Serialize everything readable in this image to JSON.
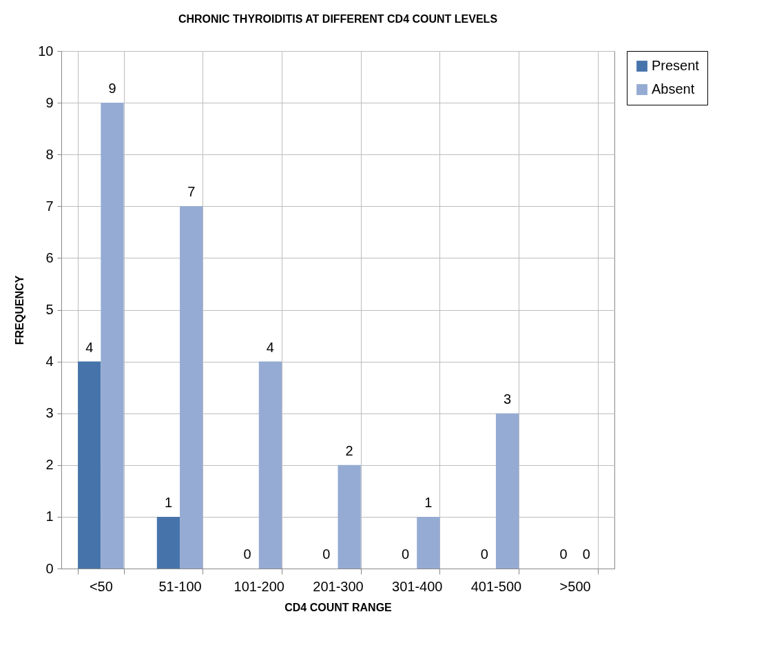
{
  "chart_data": {
    "type": "bar",
    "title": "CHRONIC THYROIDITIS AT DIFFERENT CD4 COUNT LEVELS",
    "xlabel": "CD4 COUNT RANGE",
    "ylabel": "FREQUENCY",
    "categories": [
      "<50",
      "51-100",
      "101-200",
      "201-300",
      "301-400",
      "401-500",
      ">500"
    ],
    "series": [
      {
        "name": "Present",
        "color": "#4674aa",
        "values": [
          4,
          1,
          0,
          0,
          0,
          0,
          0
        ]
      },
      {
        "name": "Absent",
        "color": "#95abd3",
        "values": [
          9,
          7,
          4,
          2,
          1,
          3,
          0
        ]
      }
    ],
    "ylim": [
      0,
      10
    ],
    "yticks": [
      0,
      1,
      2,
      3,
      4,
      5,
      6,
      7,
      8,
      9,
      10
    ],
    "grid": true,
    "legend": "right",
    "data_labels": true
  }
}
